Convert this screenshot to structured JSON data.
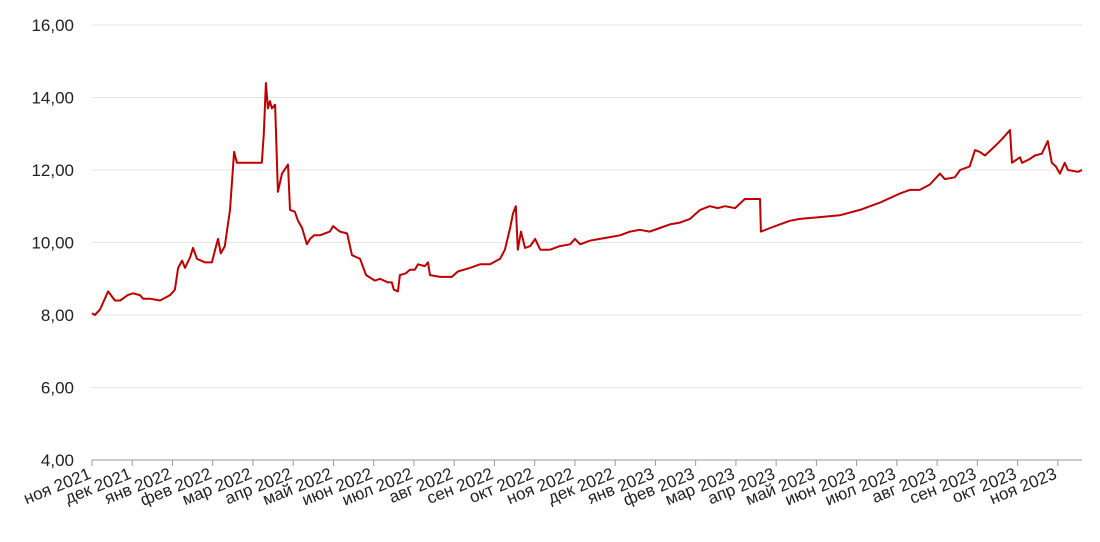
{
  "chart_data": {
    "type": "line",
    "color": "#c00000",
    "grid": true,
    "xlim": [
      0,
      24.6
    ],
    "ylim": [
      4,
      16
    ],
    "yticks": [
      {
        "value": 4,
        "label": "4,00"
      },
      {
        "value": 6,
        "label": "6,00"
      },
      {
        "value": 8,
        "label": "8,00"
      },
      {
        "value": 10,
        "label": "10,00"
      },
      {
        "value": 12,
        "label": "12,00"
      },
      {
        "value": 14,
        "label": "14,00"
      },
      {
        "value": 16,
        "label": "16,00"
      }
    ],
    "xticks": [
      {
        "value": 0,
        "label": "ноя 2021"
      },
      {
        "value": 1,
        "label": "дек 2021"
      },
      {
        "value": 2,
        "label": "янв 2022"
      },
      {
        "value": 3,
        "label": "фев 2022"
      },
      {
        "value": 4,
        "label": "мар 2022"
      },
      {
        "value": 5,
        "label": "апр 2022"
      },
      {
        "value": 6,
        "label": "май 2022"
      },
      {
        "value": 7,
        "label": "июн 2022"
      },
      {
        "value": 8,
        "label": "июл 2022"
      },
      {
        "value": 9,
        "label": "авг 2022"
      },
      {
        "value": 10,
        "label": "сен 2022"
      },
      {
        "value": 11,
        "label": "окт 2022"
      },
      {
        "value": 12,
        "label": "ноя 2022"
      },
      {
        "value": 13,
        "label": "дек 2022"
      },
      {
        "value": 14,
        "label": "янв 2023"
      },
      {
        "value": 15,
        "label": "фев 2023"
      },
      {
        "value": 16,
        "label": "мар 2023"
      },
      {
        "value": 17,
        "label": "апр 2023"
      },
      {
        "value": 18,
        "label": "май 2023"
      },
      {
        "value": 19,
        "label": "июн 2023"
      },
      {
        "value": 20,
        "label": "июл 2023"
      },
      {
        "value": 21,
        "label": "авг 2023"
      },
      {
        "value": 22,
        "label": "сен 2023"
      },
      {
        "value": 23,
        "label": "окт 2023"
      },
      {
        "value": 24,
        "label": "ноя 2023"
      }
    ],
    "x": [
      0,
      0.07,
      0.2,
      0.4,
      0.57,
      0.7,
      0.89,
      1.02,
      1.19,
      1.27,
      1.44,
      1.69,
      1.94,
      2.06,
      2.14,
      2.24,
      2.31,
      2.44,
      2.51,
      2.61,
      2.81,
      2.98,
      3.06,
      3.13,
      3.2,
      3.3,
      3.43,
      3.53,
      3.6,
      4.22,
      4.27,
      4.32,
      4.37,
      4.42,
      4.47,
      4.55,
      4.62,
      4.72,
      4.87,
      4.92,
      5.04,
      5.12,
      5.22,
      5.34,
      5.42,
      5.52,
      5.66,
      5.91,
      5.99,
      6.16,
      6.34,
      6.46,
      6.56,
      6.66,
      6.81,
      7.03,
      7.16,
      7.35,
      7.45,
      7.5,
      7.6,
      7.65,
      7.8,
      7.9,
      8.02,
      8.1,
      8.27,
      8.35,
      8.4,
      8.65,
      8.94,
      9.09,
      9.39,
      9.64,
      9.89,
      10.14,
      10.26,
      10.39,
      10.46,
      10.53,
      10.58,
      10.66,
      10.76,
      10.89,
      11.01,
      11.14,
      11.38,
      11.63,
      11.88,
      12.0,
      12.13,
      12.37,
      12.62,
      12.87,
      13.12,
      13.37,
      13.61,
      13.86,
      14.11,
      14.36,
      14.61,
      14.86,
      15.11,
      15.35,
      15.55,
      15.73,
      15.98,
      16.22,
      16.6,
      16.62,
      16.85,
      17.09,
      17.34,
      17.59,
      18.09,
      18.58,
      19.08,
      19.58,
      20.07,
      20.32,
      20.57,
      20.82,
      21.07,
      21.19,
      21.44,
      21.57,
      21.81,
      21.94,
      22.06,
      22.19,
      22.43,
      22.61,
      22.81,
      22.86,
      23.06,
      23.11,
      23.3,
      23.43,
      23.6,
      23.75,
      23.85,
      23.95,
      24.05,
      24.17,
      24.25,
      24.5,
      24.6
    ],
    "values": [
      8.05,
      8.0,
      8.15,
      8.65,
      8.4,
      8.4,
      8.55,
      8.6,
      8.55,
      8.45,
      8.45,
      8.4,
      8.55,
      8.7,
      9.3,
      9.5,
      9.3,
      9.6,
      9.85,
      9.55,
      9.45,
      9.45,
      9.8,
      10.1,
      9.7,
      9.9,
      10.9,
      12.5,
      12.2,
      12.2,
      13.0,
      14.4,
      13.7,
      13.9,
      13.7,
      13.8,
      11.4,
      11.9,
      12.15,
      10.9,
      10.85,
      10.6,
      10.4,
      9.95,
      10.1,
      10.2,
      10.2,
      10.3,
      10.45,
      10.3,
      10.25,
      9.65,
      9.6,
      9.55,
      9.1,
      8.95,
      9.0,
      8.9,
      8.9,
      8.7,
      8.65,
      9.1,
      9.15,
      9.25,
      9.25,
      9.4,
      9.35,
      9.45,
      9.1,
      9.05,
      9.05,
      9.2,
      9.3,
      9.4,
      9.4,
      9.55,
      9.8,
      10.4,
      10.8,
      11.0,
      9.8,
      10.3,
      9.85,
      9.9,
      10.1,
      9.8,
      9.8,
      9.9,
      9.95,
      10.1,
      9.95,
      10.05,
      10.1,
      10.15,
      10.2,
      10.3,
      10.35,
      10.3,
      10.4,
      10.5,
      10.55,
      10.65,
      10.9,
      11.0,
      10.95,
      11.0,
      10.95,
      11.2,
      11.2,
      10.3,
      10.4,
      10.5,
      10.6,
      10.65,
      10.7,
      10.75,
      10.9,
      11.1,
      11.35,
      11.45,
      11.45,
      11.6,
      11.9,
      11.75,
      11.8,
      12.0,
      12.1,
      12.55,
      12.5,
      12.4,
      12.65,
      12.85,
      13.1,
      12.2,
      12.35,
      12.2,
      12.3,
      12.4,
      12.45,
      12.8,
      12.2,
      12.1,
      11.9,
      12.2,
      12.0,
      11.95,
      12.0
    ]
  }
}
